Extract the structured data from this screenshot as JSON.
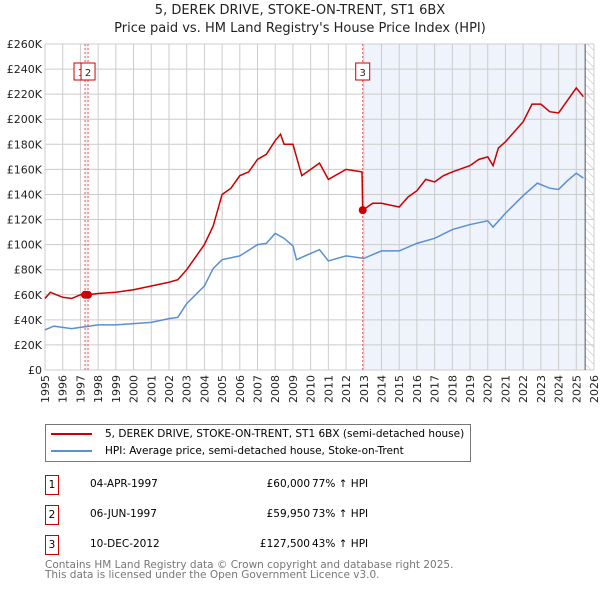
{
  "title": "5, DEREK DRIVE, STOKE-ON-TRENT, ST1 6BX",
  "subtitle": "Price paid vs. HM Land Registry's House Price Index (HPI)",
  "colors": {
    "property": "#cc0000",
    "hpi": "#5b8fd4",
    "shade": "#eef3fc"
  },
  "chart_data": {
    "type": "line",
    "title": "5, DEREK DRIVE, STOKE-ON-TRENT, ST1 6BX",
    "subtitle": "Price paid vs. HM Land Registry's House Price Index (HPI)",
    "xlim": [
      1995,
      2026
    ],
    "ylim": [
      0,
      260000
    ],
    "yticks": [
      "£0",
      "£20K",
      "£40K",
      "£60K",
      "£80K",
      "£100K",
      "£120K",
      "£140K",
      "£160K",
      "£180K",
      "£200K",
      "£220K",
      "£240K",
      "£260K"
    ],
    "xticks": [
      "1995",
      "1996",
      "1997",
      "1998",
      "1999",
      "2000",
      "2001",
      "2002",
      "2003",
      "2004",
      "2005",
      "2006",
      "2007",
      "2008",
      "2009",
      "2010",
      "2011",
      "2012",
      "2013",
      "2014",
      "2015",
      "2016",
      "2017",
      "2018",
      "2019",
      "2020",
      "2021",
      "2022",
      "2023",
      "2024",
      "2025",
      "2026"
    ],
    "grid": true,
    "series": [
      {
        "name": "5, DEREK DRIVE, STOKE-ON-TRENT, ST1 6BX (semi-detached house)",
        "x": [
          1995,
          1995.3,
          1996,
          1996.5,
          1997,
          1997.4,
          1998,
          1999,
          2000,
          2001,
          2002,
          2002.5,
          2003,
          2003.5,
          2004,
          2004.5,
          2005,
          2005.5,
          2006,
          2006.5,
          2007,
          2007.5,
          2008,
          2008.3,
          2008.5,
          2009,
          2009.5,
          2010,
          2010.5,
          2011,
          2012,
          2012.9,
          2012.94,
          2013,
          2013.5,
          2014,
          2015,
          2015.5,
          2016,
          2016.5,
          2017,
          2017.5,
          2018,
          2019,
          2019.5,
          2020,
          2020.3,
          2020.6,
          2021,
          2022,
          2022.5,
          2023,
          2023.5,
          2024,
          2024.5,
          2025,
          2025.4
        ],
        "values": [
          57000,
          62000,
          58000,
          57000,
          60000,
          60000,
          61000,
          62000,
          64000,
          67000,
          70000,
          72000,
          80000,
          90000,
          100000,
          115000,
          140000,
          145000,
          155000,
          158000,
          168000,
          172000,
          183000,
          188000,
          180000,
          180000,
          155000,
          160000,
          165000,
          152000,
          160000,
          158000,
          127500,
          128000,
          133000,
          133000,
          130000,
          138000,
          143000,
          152000,
          150000,
          155000,
          158000,
          163000,
          168000,
          170000,
          163000,
          177000,
          182000,
          198000,
          212000,
          212000,
          206000,
          205000,
          215000,
          225000,
          218000
        ]
      },
      {
        "name": "HPI: Average price, semi-detached house, Stoke-on-Trent",
        "x": [
          1995,
          1995.5,
          1996,
          1996.5,
          1997,
          1998,
          1999,
          2000,
          2001,
          2002,
          2002.5,
          2003,
          2004,
          2004.5,
          2005,
          2006,
          2007,
          2007.5,
          2008,
          2008.5,
          2009,
          2009.2,
          2010,
          2010.5,
          2011,
          2012,
          2013,
          2014,
          2015,
          2016,
          2017,
          2018,
          2019,
          2020,
          2020.3,
          2021,
          2022,
          2022.8,
          2023.5,
          2024,
          2024.5,
          2025,
          2025.4
        ],
        "values": [
          32000,
          35000,
          34000,
          33000,
          34000,
          36000,
          36000,
          37000,
          38000,
          41000,
          42000,
          53000,
          67000,
          81000,
          88000,
          91000,
          100000,
          101000,
          109000,
          105000,
          99000,
          88000,
          93000,
          96000,
          87000,
          91000,
          89000,
          95000,
          95000,
          101000,
          105000,
          112000,
          116000,
          119000,
          114000,
          125000,
          139000,
          149000,
          145000,
          144000,
          151000,
          157000,
          153000
        ]
      }
    ],
    "sales": [
      {
        "label": "1",
        "x": 1997.26,
        "value": 60000
      },
      {
        "label": "2",
        "x": 1997.43,
        "value": 59950
      },
      {
        "label": "3",
        "x": 2012.94,
        "value": 127500
      }
    ],
    "forecast_from": 2025.5
  },
  "legend": {
    "property": "5, DEREK DRIVE, STOKE-ON-TRENT, ST1 6BX (semi-detached house)",
    "hpi": "HPI: Average price, semi-detached house, Stoke-on-Trent"
  },
  "transactions": [
    {
      "num": "1",
      "date": "04-APR-1997",
      "price": "£60,000",
      "hpi": "77% ↑ HPI"
    },
    {
      "num": "2",
      "date": "06-JUN-1997",
      "price": "£59,950",
      "hpi": "73% ↑ HPI"
    },
    {
      "num": "3",
      "date": "10-DEC-2012",
      "price": "£127,500",
      "hpi": "43% ↑ HPI"
    }
  ],
  "footer": {
    "line1": "Contains HM Land Registry data © Crown copyright and database right 2025.",
    "line2": "This data is licensed under the Open Government Licence v3.0."
  }
}
